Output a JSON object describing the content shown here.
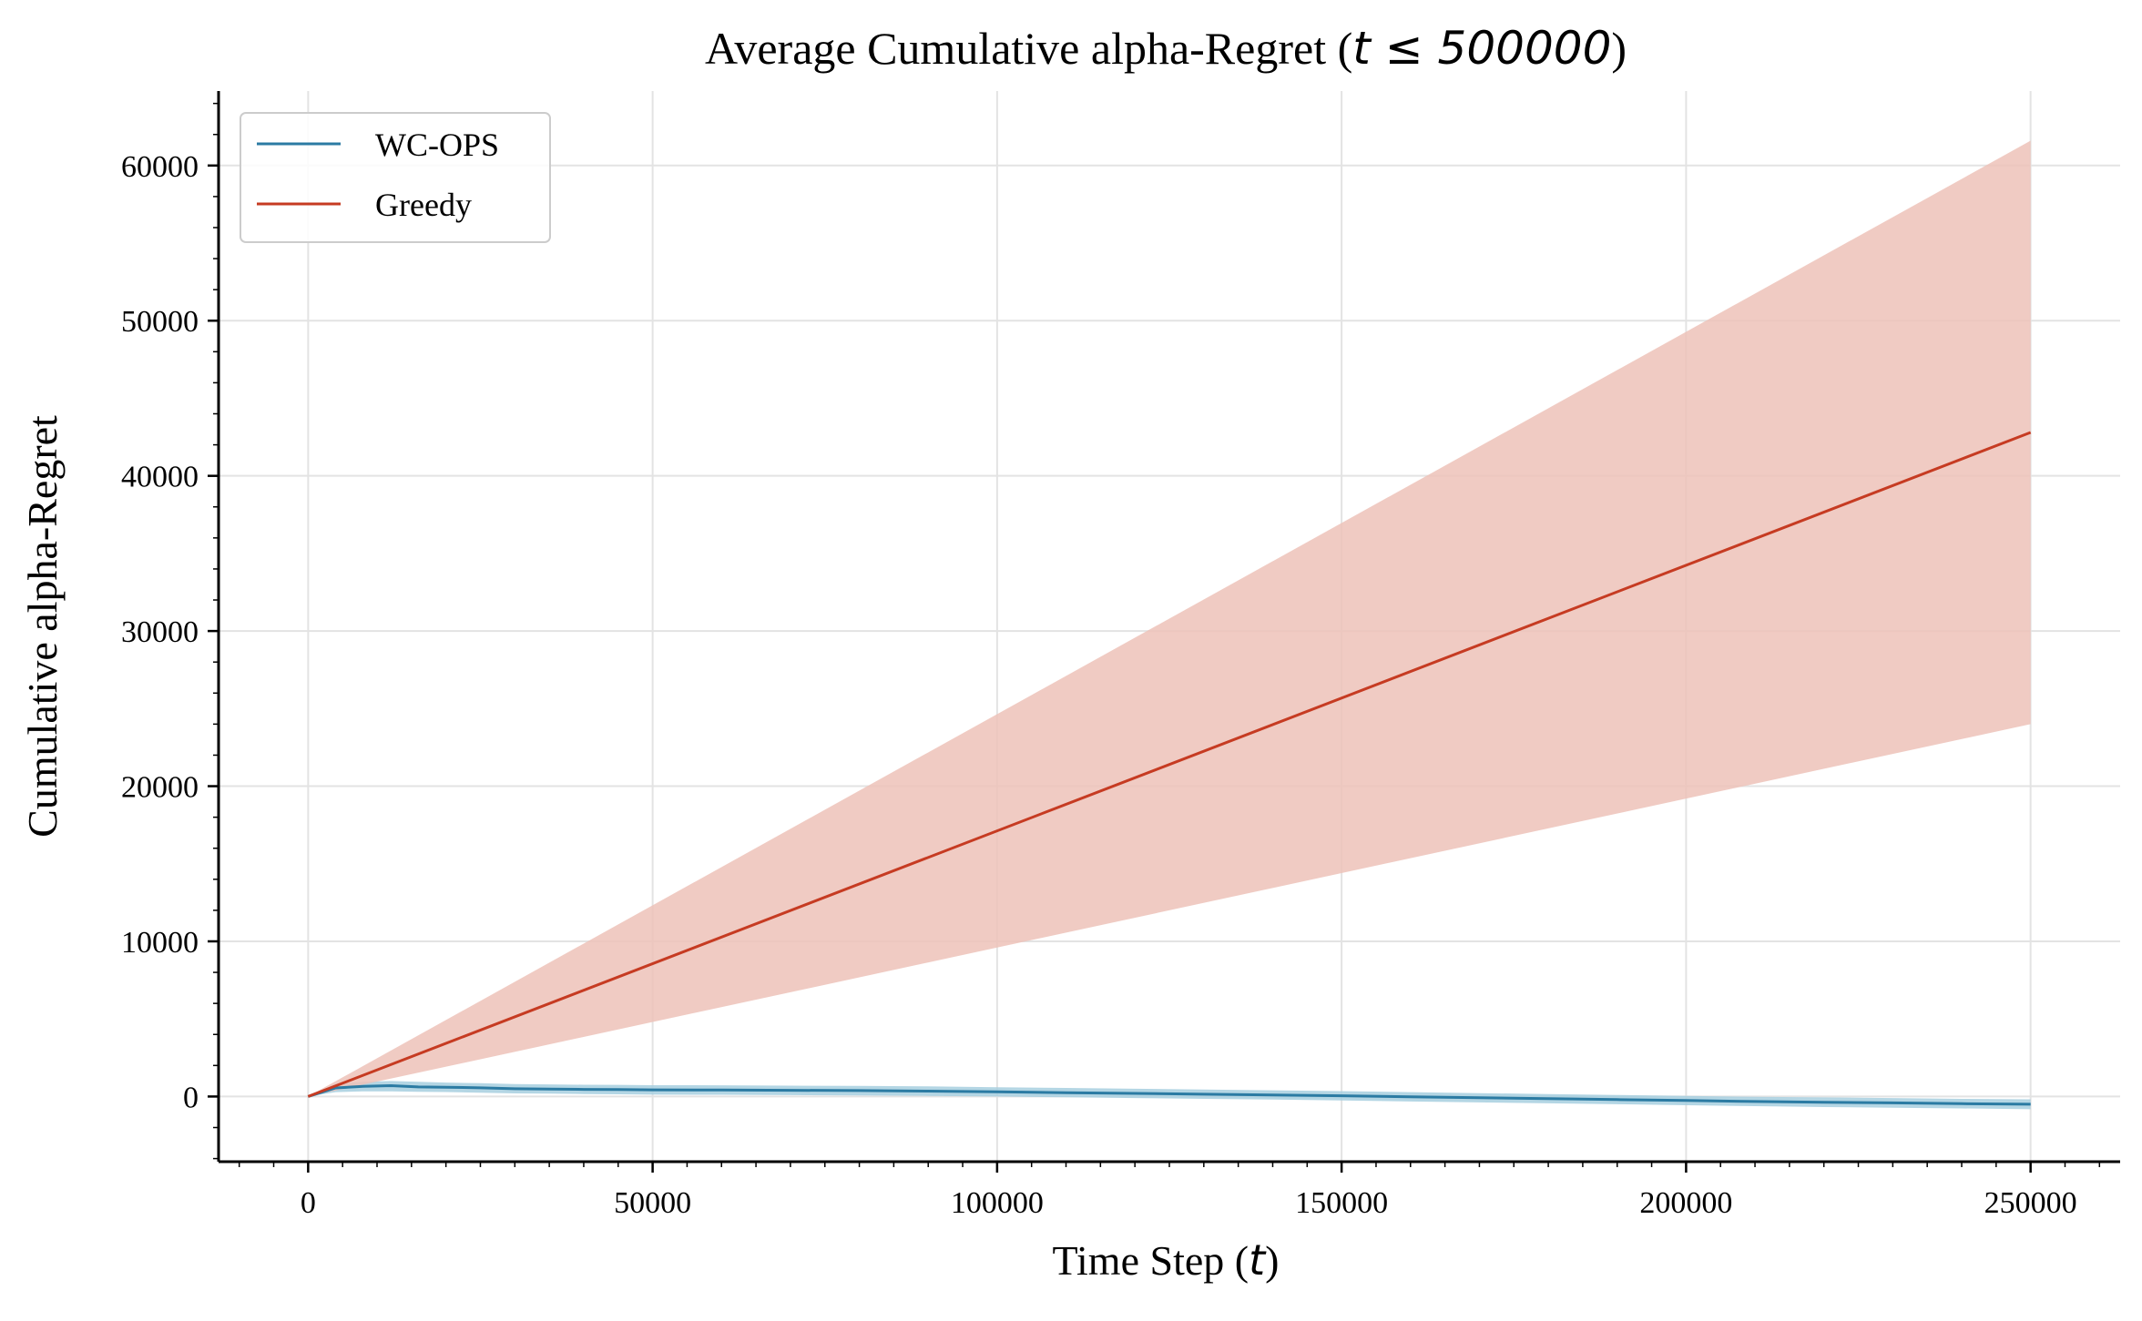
{
  "chart_data": {
    "type": "line",
    "title": "Average Cumulative alpha-Regret (",
    "title_math": "t ≤ 500000",
    "title_suffix": ")",
    "xlabel": "Time Step (",
    "xlabel_math": "t",
    "xlabel_suffix": ")",
    "ylabel": "Cumulative alpha-Regret",
    "xlim": [
      -13000,
      263000
    ],
    "ylim": [
      -4200,
      64800
    ],
    "xticks": [
      0,
      50000,
      100000,
      150000,
      200000,
      250000
    ],
    "xtick_labels": [
      "0",
      "50000",
      "100000",
      "150000",
      "200000",
      "250000"
    ],
    "yticks": [
      0,
      10000,
      20000,
      30000,
      40000,
      50000,
      60000
    ],
    "ytick_labels": [
      "0",
      "10000",
      "20000",
      "30000",
      "40000",
      "50000",
      "60000"
    ],
    "grid": true,
    "legend_position": "top-left",
    "series": [
      {
        "name": "WC-OPS",
        "color": "#2b7ba3",
        "band_color": "#a7cfdf",
        "x": [
          0,
          4000,
          8000,
          12000,
          16000,
          20000,
          25000,
          30000,
          35000,
          40000,
          45000,
          50000,
          60000,
          70000,
          80000,
          90000,
          100000,
          110000,
          120000,
          130000,
          140000,
          150000,
          160000,
          170000,
          180000,
          190000,
          200000,
          210000,
          220000,
          230000,
          240000,
          250000
        ],
        "y": [
          0,
          550,
          650,
          700,
          620,
          600,
          560,
          500,
          480,
          460,
          450,
          430,
          420,
          400,
          380,
          350,
          300,
          250,
          200,
          150,
          100,
          50,
          -20,
          -80,
          -140,
          -200,
          -260,
          -320,
          -370,
          -410,
          -460,
          -500
        ],
        "lower": [
          0,
          280,
          330,
          330,
          300,
          290,
          250,
          200,
          180,
          160,
          140,
          120,
          110,
          90,
          70,
          40,
          0,
          -50,
          -100,
          -150,
          -200,
          -250,
          -320,
          -380,
          -440,
          -500,
          -560,
          -620,
          -680,
          -720,
          -770,
          -820
        ],
        "upper": [
          0,
          820,
          950,
          1000,
          950,
          900,
          860,
          800,
          780,
          760,
          750,
          730,
          720,
          700,
          680,
          650,
          600,
          550,
          500,
          450,
          400,
          350,
          280,
          220,
          160,
          100,
          40,
          -20,
          -60,
          -100,
          -150,
          -180
        ]
      },
      {
        "name": "Greedy",
        "color": "#c63b22",
        "band_color": "#edc2b8",
        "x": [
          0,
          250000
        ],
        "y": [
          0,
          42800
        ],
        "lower": [
          0,
          24000
        ],
        "upper": [
          0,
          61600
        ]
      }
    ]
  }
}
